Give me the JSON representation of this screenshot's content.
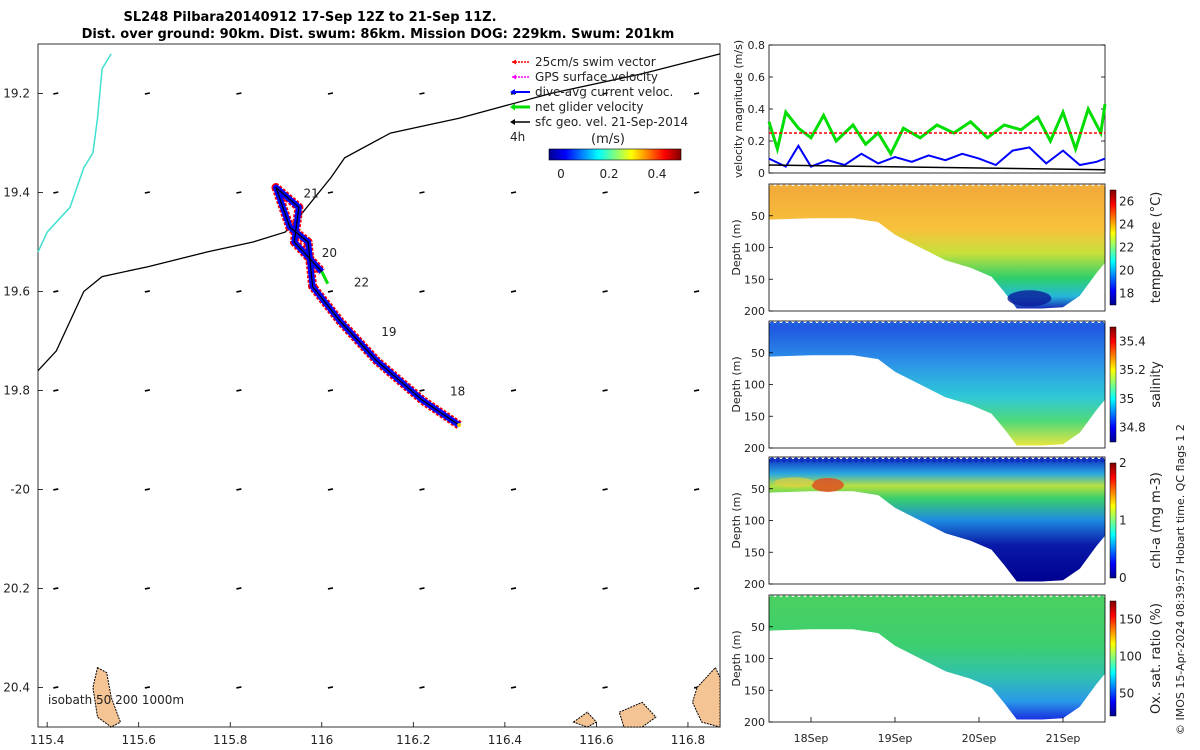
{
  "title_line1": "SL248 Pilbara20140912 17-Sep 12Z to 21-Sep 11Z.",
  "title_line2": "Dist. over ground: 90km. Dist. swum: 86km. Mission DOG: 229km. Swum: 201km",
  "colors": {
    "swim": "#ff0000",
    "gps": "#ff00ff",
    "dive_avg": "#0000ff",
    "net": "#00dd00",
    "sfc_geo": "#000000",
    "coast_line": "#40e0d0",
    "land": "#f4c494",
    "isobath": "#000000"
  },
  "chart_data": [
    {
      "type": "scatter",
      "panel": "map",
      "xlim": [
        115.38,
        116.87
      ],
      "ylim": [
        -20.48,
        -19.1
      ],
      "x_ticks": [
        115.4,
        115.6,
        115.8,
        116,
        116.2,
        116.4,
        116.6,
        116.8
      ],
      "x_tick_labels": [
        "115.4",
        "115.6",
        "115.8",
        "116",
        "116.2",
        "116.4",
        "116.6",
        "116.8"
      ],
      "y_ticks": [
        -19.2,
        -19.4,
        -19.6,
        -19.8,
        -20,
        -20.2,
        -20.4
      ],
      "y_tick_labels": [
        "19.2",
        "19.4",
        "19.6",
        "19.8",
        "-20",
        "20.2",
        "20.4"
      ],
      "legend": [
        "25cm/s swim vector",
        "GPS surface velocity",
        "dive-avg current veloc.",
        "net glider velocity",
        "sfc geo. vel. 21-Sep-2014"
      ],
      "time_label": "4h",
      "colorbar": {
        "label": "(m/s)",
        "ticks": [
          "0",
          "0.2",
          "0.4"
        ],
        "range": [
          -0.05,
          0.5
        ]
      },
      "track": [
        [
          116.3,
          -19.87
        ],
        [
          116.22,
          -19.82
        ],
        [
          116.12,
          -19.74
        ],
        [
          116.04,
          -19.66
        ],
        [
          115.98,
          -19.59
        ],
        [
          115.97,
          -19.5
        ],
        [
          115.93,
          -19.47
        ],
        [
          115.9,
          -19.39
        ],
        [
          115.95,
          -19.43
        ],
        [
          115.94,
          -19.5
        ],
        [
          116.0,
          -19.56
        ]
      ],
      "day_labels": [
        {
          "text": "18",
          "lon": 116.28,
          "lat": -19.81
        },
        {
          "text": "19",
          "lon": 116.13,
          "lat": -19.69
        },
        {
          "text": "22",
          "lon": 116.07,
          "lat": -19.59
        },
        {
          "text": "20",
          "lon": 116.0,
          "lat": -19.53
        },
        {
          "text": "21",
          "lon": 115.96,
          "lat": -19.41
        }
      ],
      "isobath_label": "isobath 50  200  1000m"
    },
    {
      "type": "line",
      "panel": "velocity",
      "ylabel": "velocity magnitude (m/s)",
      "ylim": [
        0,
        0.8
      ],
      "y_ticks": [
        0,
        0.2,
        0.4,
        0.6,
        0.8
      ],
      "y_tick_labels": [
        "0",
        "0.2",
        "0.4",
        "0.6",
        "0.8"
      ],
      "x_range_days": [
        17.5,
        21.5
      ],
      "series": [
        {
          "color": "#00dd00",
          "x": [
            17.5,
            17.6,
            17.7,
            17.85,
            18.0,
            18.15,
            18.3,
            18.5,
            18.65,
            18.8,
            18.95,
            19.1,
            19.3,
            19.5,
            19.7,
            19.9,
            20.1,
            20.3,
            20.5,
            20.7,
            20.85,
            21.0,
            21.15,
            21.3,
            21.45,
            21.5
          ],
          "values": [
            0.32,
            0.15,
            0.38,
            0.28,
            0.22,
            0.36,
            0.2,
            0.3,
            0.18,
            0.25,
            0.12,
            0.28,
            0.22,
            0.3,
            0.25,
            0.32,
            0.22,
            0.3,
            0.27,
            0.35,
            0.2,
            0.38,
            0.15,
            0.4,
            0.25,
            0.43
          ]
        },
        {
          "color": "#0000ff",
          "x": [
            17.5,
            17.7,
            17.85,
            18.0,
            18.2,
            18.4,
            18.6,
            18.8,
            19.0,
            19.2,
            19.4,
            19.6,
            19.8,
            20.0,
            20.2,
            20.4,
            20.6,
            20.8,
            21.0,
            21.2,
            21.4,
            21.5
          ],
          "values": [
            0.09,
            0.04,
            0.17,
            0.04,
            0.08,
            0.05,
            0.12,
            0.06,
            0.1,
            0.07,
            0.11,
            0.08,
            0.12,
            0.09,
            0.05,
            0.14,
            0.16,
            0.06,
            0.14,
            0.05,
            0.07,
            0.09
          ]
        },
        {
          "color": "#ff0000",
          "x": [
            17.5,
            21.5
          ],
          "values": [
            0.25,
            0.25
          ]
        },
        {
          "color": "#000000",
          "x": [
            17.5,
            21.5
          ],
          "values": [
            0.05,
            0.02
          ]
        }
      ]
    },
    {
      "type": "heatmap",
      "panel": "temperature",
      "ylabel": "Depth (m)",
      "cbar_label": "temperature (°C)",
      "ylim": [
        200,
        0
      ],
      "y_ticks": [
        50,
        100,
        150,
        200
      ],
      "cbar_ticks": [
        "18",
        "20",
        "22",
        "24",
        "26"
      ],
      "cbar_range": [
        17,
        27
      ]
    },
    {
      "type": "heatmap",
      "panel": "salinity",
      "ylabel": "Depth (m)",
      "cbar_label": "salinity",
      "ylim": [
        200,
        0
      ],
      "y_ticks": [
        50,
        100,
        150,
        200
      ],
      "cbar_ticks": [
        "34.8",
        "35",
        "35.2",
        "35.4"
      ],
      "cbar_range": [
        34.7,
        35.5
      ]
    },
    {
      "type": "heatmap",
      "panel": "chla",
      "ylabel": "Depth (m)",
      "cbar_label": "chl-a (mg m-3)",
      "ylim": [
        200,
        0
      ],
      "y_ticks": [
        50,
        100,
        150,
        200
      ],
      "cbar_ticks": [
        "0",
        "1",
        "2"
      ],
      "cbar_range": [
        0,
        2
      ]
    },
    {
      "type": "heatmap",
      "panel": "oxygen",
      "ylabel": "Depth (m)",
      "cbar_label": "Ox. sat. ratio (%)",
      "ylim": [
        200,
        0
      ],
      "y_ticks": [
        50,
        100,
        150,
        200
      ],
      "cbar_ticks": [
        "50",
        "100",
        "150"
      ],
      "cbar_range": [
        20,
        175
      ],
      "x_ticks": [
        "18Sep",
        "19Sep",
        "20Sep",
        "21Sep"
      ]
    }
  ],
  "footer": "© IMOS 15-Apr-2024 08:39:57 Hobart time. QC flags 1  2"
}
